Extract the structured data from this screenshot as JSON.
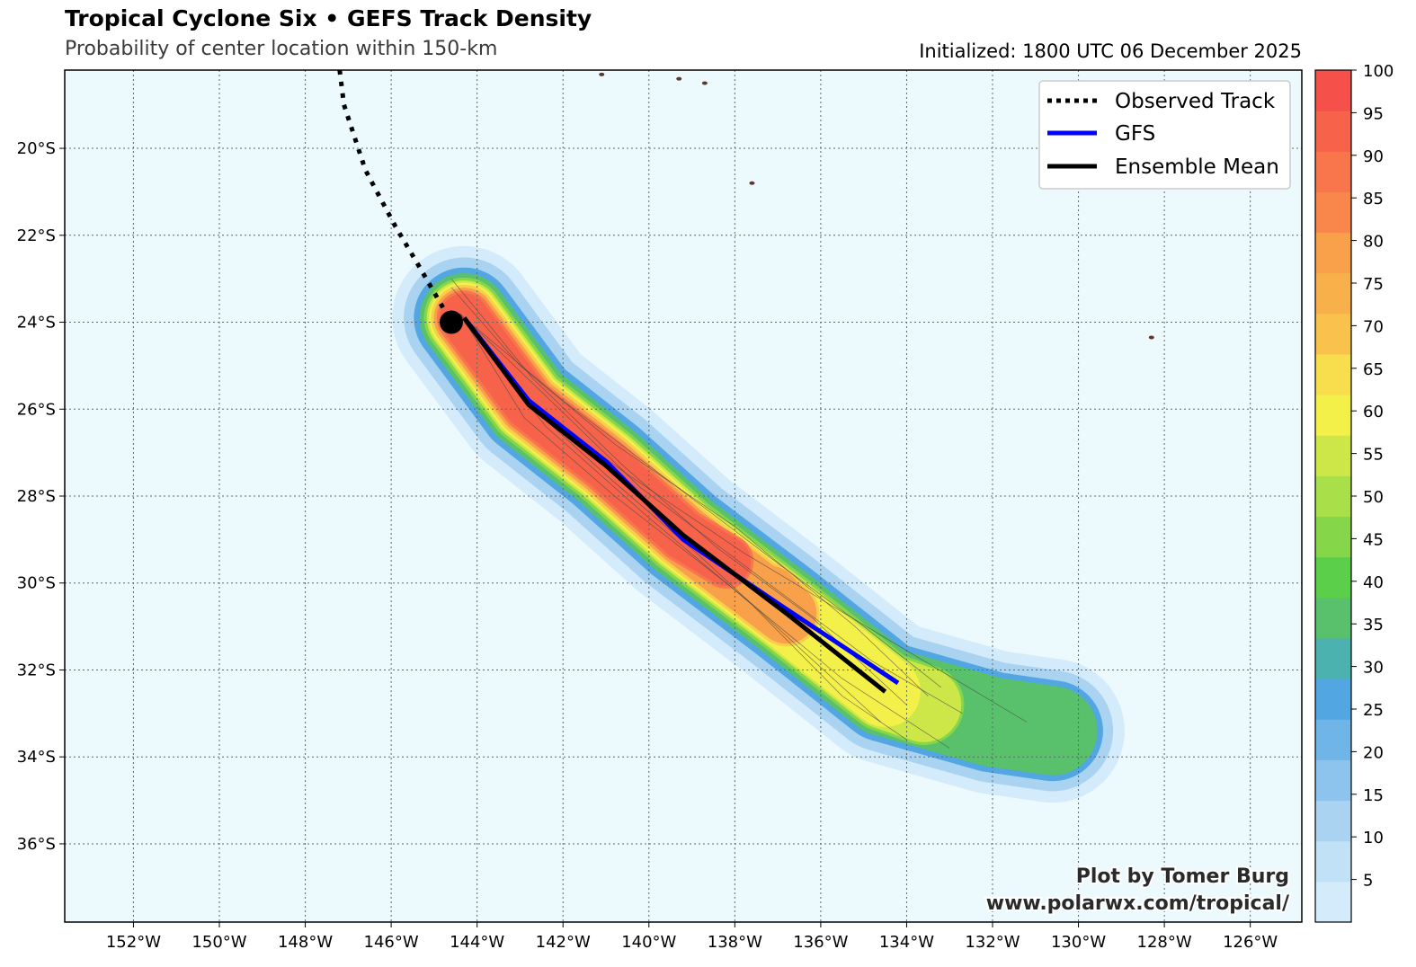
{
  "header": {
    "title": "Tropical Cyclone Six • GEFS Track Density",
    "subtitle": "Probability of center location within 150-km",
    "initialized": "Initialized: 1800 UTC 06 December 2025"
  },
  "credit": {
    "line1": "Plot by Tomer Burg",
    "line2": "www.polarwx.com/tropical/"
  },
  "legend": {
    "observed": "Observed Track",
    "gfs": "GFS",
    "mean": "Ensemble Mean"
  },
  "colors": {
    "ocean": "#ecfafd",
    "gfs": "#0000ff",
    "mean": "#000000",
    "observed": "#000000"
  },
  "chart_data": {
    "type": "map",
    "lon_range": [
      -153.6,
      -124.8
    ],
    "lat_range": [
      -37.8,
      -18.2
    ],
    "lon_ticks": [
      {
        "value": -152,
        "label": "152°W"
      },
      {
        "value": -150,
        "label": "150°W"
      },
      {
        "value": -148,
        "label": "148°W"
      },
      {
        "value": -146,
        "label": "146°W"
      },
      {
        "value": -144,
        "label": "144°W"
      },
      {
        "value": -142,
        "label": "142°W"
      },
      {
        "value": -140,
        "label": "140°W"
      },
      {
        "value": -138,
        "label": "138°W"
      },
      {
        "value": -136,
        "label": "136°W"
      },
      {
        "value": -134,
        "label": "134°W"
      },
      {
        "value": -132,
        "label": "132°W"
      },
      {
        "value": -130,
        "label": "130°W"
      },
      {
        "value": -128,
        "label": "128°W"
      },
      {
        "value": -126,
        "label": "126°W"
      }
    ],
    "lat_ticks": [
      {
        "value": -20,
        "label": "20°S"
      },
      {
        "value": -22,
        "label": "22°S"
      },
      {
        "value": -24,
        "label": "24°S"
      },
      {
        "value": -26,
        "label": "26°S"
      },
      {
        "value": -28,
        "label": "28°S"
      },
      {
        "value": -30,
        "label": "30°S"
      },
      {
        "value": -32,
        "label": "32°S"
      },
      {
        "value": -34,
        "label": "34°S"
      },
      {
        "value": -36,
        "label": "36°S"
      }
    ],
    "grid": true,
    "legend_position": "top-right",
    "current_position": {
      "lon": -144.6,
      "lat": -24.0
    },
    "observed_track": [
      [
        -147.2,
        -18.2
      ],
      [
        -147.1,
        -19.0
      ],
      [
        -146.6,
        -20.5
      ],
      [
        -145.9,
        -21.8
      ],
      [
        -145.3,
        -22.8
      ],
      [
        -144.6,
        -24.0
      ]
    ],
    "gfs_track": [
      [
        -144.3,
        -23.9
      ],
      [
        -142.8,
        -25.8
      ],
      [
        -141.0,
        -27.2
      ],
      [
        -139.2,
        -29.0
      ],
      [
        -136.8,
        -30.6
      ],
      [
        -134.2,
        -32.3
      ]
    ],
    "ensemble_mean_track": [
      [
        -144.3,
        -23.9
      ],
      [
        -142.8,
        -25.9
      ],
      [
        -141.0,
        -27.3
      ],
      [
        -139.2,
        -28.9
      ],
      [
        -136.8,
        -30.7
      ],
      [
        -134.5,
        -32.5
      ]
    ],
    "ensemble_members": [
      [
        [
          -144.4,
          -23.8
        ],
        [
          -142.5,
          -25.6
        ],
        [
          -140.2,
          -27.8
        ],
        [
          -137.5,
          -29.8
        ],
        [
          -134.8,
          -31.8
        ],
        [
          -132.7,
          -33.0
        ]
      ],
      [
        [
          -144.4,
          -23.8
        ],
        [
          -142.9,
          -26.2
        ],
        [
          -140.8,
          -28.0
        ],
        [
          -138.2,
          -30.0
        ],
        [
          -135.5,
          -32.2
        ],
        [
          -133.0,
          -33.8
        ]
      ],
      [
        [
          -144.3,
          -23.9
        ],
        [
          -142.6,
          -26.0
        ],
        [
          -140.5,
          -27.5
        ],
        [
          -137.8,
          -29.3
        ],
        [
          -134.6,
          -31.2
        ],
        [
          -131.2,
          -33.2
        ]
      ],
      [
        [
          -144.6,
          -23.2
        ],
        [
          -143.0,
          -25.0
        ],
        [
          -140.8,
          -26.8
        ],
        [
          -138.0,
          -28.7
        ],
        [
          -135.2,
          -31.0
        ],
        [
          -133.5,
          -32.6
        ]
      ],
      [
        [
          -144.3,
          -24.0
        ],
        [
          -142.4,
          -26.4
        ],
        [
          -140.0,
          -28.5
        ],
        [
          -137.6,
          -30.5
        ],
        [
          -135.5,
          -32.6
        ],
        [
          -134.0,
          -33.6
        ]
      ],
      [
        [
          -144.6,
          -23.0
        ],
        [
          -142.7,
          -25.3
        ],
        [
          -140.6,
          -27.3
        ],
        [
          -138.4,
          -29.2
        ],
        [
          -136.2,
          -30.8
        ],
        [
          -134.0,
          -32.8
        ]
      ],
      [
        [
          -144.3,
          -23.9
        ],
        [
          -142.0,
          -25.8
        ],
        [
          -139.6,
          -27.6
        ],
        [
          -137.2,
          -29.4
        ],
        [
          -135.0,
          -31.0
        ],
        [
          -133.2,
          -32.4
        ]
      ],
      [
        [
          -144.4,
          -23.8
        ],
        [
          -142.8,
          -25.9
        ],
        [
          -140.9,
          -27.6
        ],
        [
          -138.9,
          -29.3
        ],
        [
          -136.6,
          -31.4
        ],
        [
          -134.6,
          -33.2
        ]
      ]
    ],
    "density_levels": [
      {
        "lo": 1,
        "color": "#d3ebfa"
      },
      {
        "lo": 10,
        "color": "#a9d3f1"
      },
      {
        "lo": 25,
        "color": "#52a6e2"
      },
      {
        "lo": 35,
        "color": "#59c06b"
      },
      {
        "lo": 45,
        "color": "#86d649"
      },
      {
        "lo": 55,
        "color": "#cde748"
      },
      {
        "lo": 62,
        "color": "#f4f04a"
      },
      {
        "lo": 70,
        "color": "#f8cf4c"
      },
      {
        "lo": 80,
        "color": "#f8a04a"
      },
      {
        "lo": 88,
        "color": "#f9754c"
      },
      {
        "lo": 92,
        "color": "#f7634a"
      }
    ],
    "colorbar": {
      "range": [
        0,
        100
      ],
      "labels": [
        5,
        10,
        15,
        20,
        25,
        30,
        35,
        40,
        45,
        50,
        55,
        60,
        65,
        70,
        75,
        80,
        85,
        90,
        95,
        100
      ],
      "colors": [
        "#d3ebfa",
        "#c0e1f6",
        "#a9d3f1",
        "#8dc4ed",
        "#6fb5e8",
        "#52a6e2",
        "#4bb2b0",
        "#59c06b",
        "#5ccf4a",
        "#86d649",
        "#a9df48",
        "#cde748",
        "#f4f04a",
        "#f8dd4c",
        "#f8c24c",
        "#f8b04b",
        "#f8a04a",
        "#f9874b",
        "#f9754c",
        "#f7634a",
        "#f5504a"
      ]
    }
  }
}
